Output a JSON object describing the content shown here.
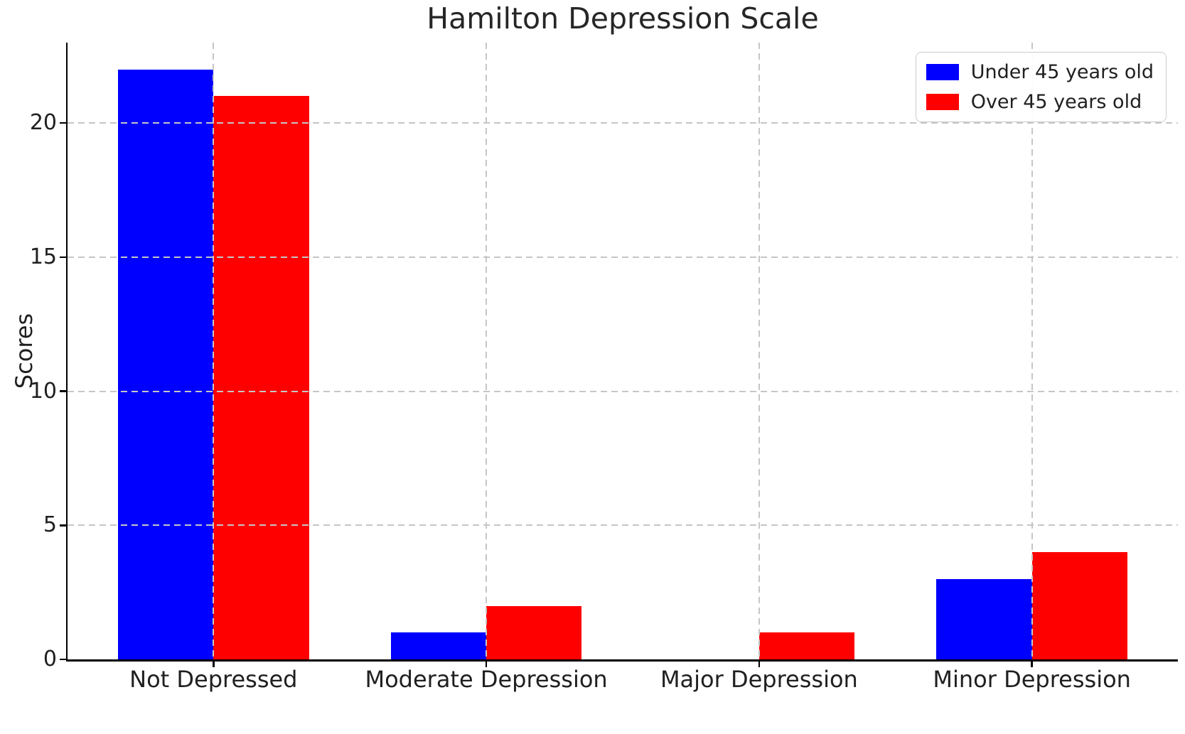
{
  "chart_data": {
    "type": "bar",
    "title": "Hamilton Depression Scale",
    "ylabel": "Scores",
    "xlabel": "",
    "categories": [
      "Not Depressed",
      "Moderate Depression",
      "Major Depression",
      "Minor Depression"
    ],
    "series": [
      {
        "name": "Under 45 years old",
        "color": "#0000ff",
        "values": [
          22,
          1,
          0,
          3
        ]
      },
      {
        "name": "Over 45 years old",
        "color": "#ff0000",
        "values": [
          21,
          2,
          1,
          4
        ]
      }
    ],
    "ylim": [
      0,
      23
    ],
    "yticks": [
      0,
      5,
      10,
      15,
      20
    ],
    "grid": true,
    "grid_style": "dashed",
    "grid_color": "#c6c6c6",
    "grid_above_bars": true,
    "legend_position": "upper right",
    "bar_width": 0.35,
    "x_margin": 0.535,
    "axis_color": "#000000",
    "text_color": "#202020"
  }
}
